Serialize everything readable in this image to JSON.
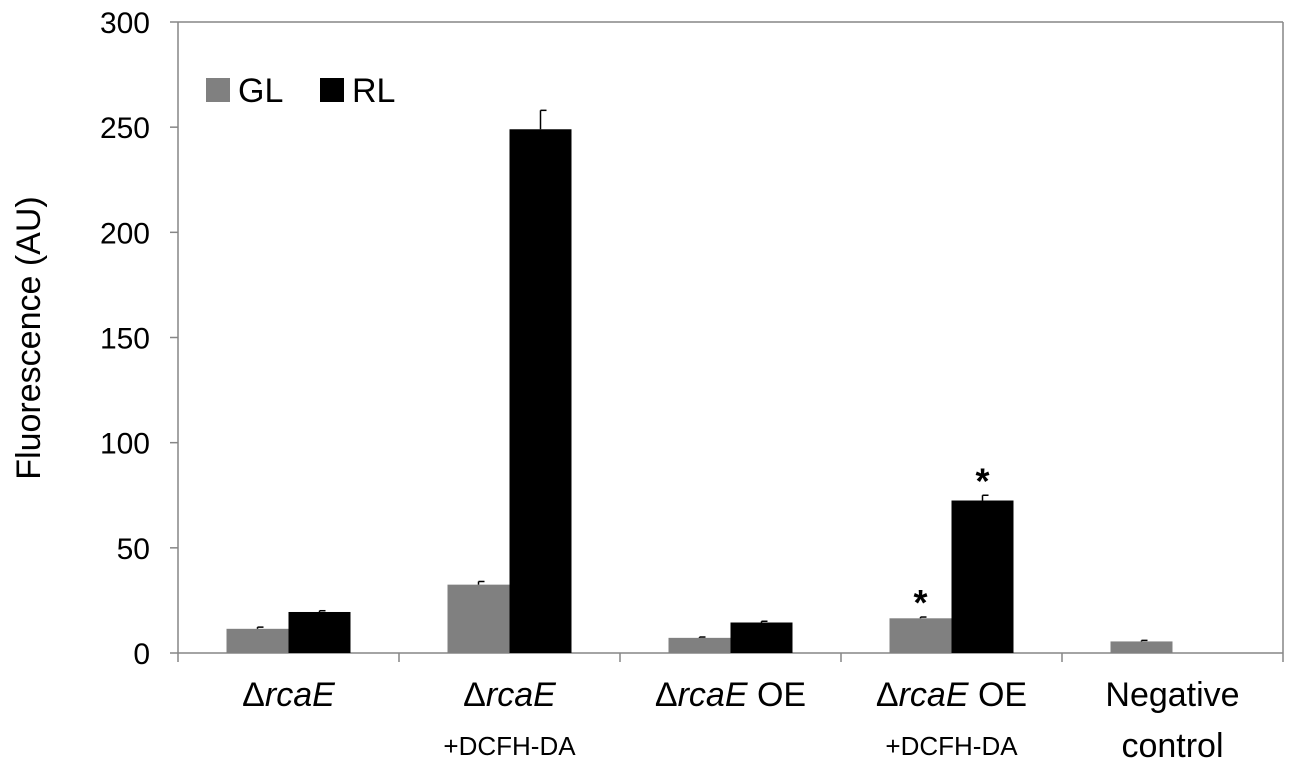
{
  "chart_data": {
    "type": "bar",
    "ylabel": "Fluorescence (AU)",
    "ylim": [
      0,
      300
    ],
    "yticks": [
      "0",
      "50",
      "100",
      "150",
      "200",
      "250",
      "300"
    ],
    "grid": false,
    "legend": {
      "placement": "top-left",
      "entries": [
        "GL",
        "RL"
      ]
    },
    "categories": [
      {
        "prefix": "Δ",
        "italic": "rcaE",
        "suffix": "",
        "sub": ""
      },
      {
        "prefix": "Δ",
        "italic": "rcaE",
        "suffix": "",
        "sub": "+DCFH-DA"
      },
      {
        "prefix": "Δ",
        "italic": "rcaE",
        "suffix": " OE",
        "sub": ""
      },
      {
        "prefix": "Δ",
        "italic": "rcaE",
        "suffix": " OE",
        "sub": "+DCFH-DA"
      },
      {
        "prefix": "",
        "italic": "",
        "suffix": "Negative",
        "sub": "control"
      }
    ],
    "series": [
      {
        "name": "GL",
        "color": "#808080",
        "values": [
          11.5,
          32.5,
          7.2,
          16.5,
          5.5
        ],
        "errors": [
          0.8,
          1.5,
          0.4,
          0.6,
          0.5
        ],
        "significance": [
          "",
          "",
          "",
          "*",
          ""
        ]
      },
      {
        "name": "RL",
        "color": "#000000",
        "values": [
          19.5,
          249,
          14.5,
          72.5,
          null
        ],
        "errors": [
          0.6,
          9,
          0.6,
          2.5,
          null
        ],
        "significance": [
          "",
          "",
          "",
          "*",
          ""
        ]
      }
    ]
  }
}
